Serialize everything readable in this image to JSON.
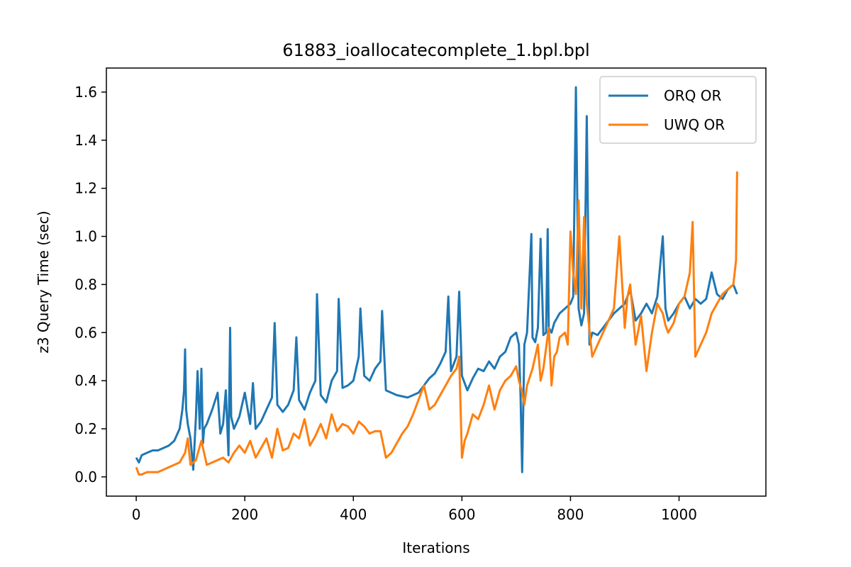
{
  "chart_data": {
    "type": "line",
    "title": "61883_ioallocatecomplete_1.bpl.bpl",
    "xlabel": "Iterations",
    "ylabel": "z3 Query Time (sec)",
    "xlim": [
      -55,
      1160
    ],
    "ylim": [
      -0.08,
      1.7
    ],
    "xticks": [
      0,
      200,
      400,
      600,
      800,
      1000
    ],
    "xtick_labels": [
      "0",
      "200",
      "400",
      "600",
      "800",
      "1000"
    ],
    "yticks": [
      0.0,
      0.2,
      0.4,
      0.6,
      0.8,
      1.0,
      1.2,
      1.4,
      1.6
    ],
    "ytick_labels": [
      "0.0",
      "0.2",
      "0.4",
      "0.6",
      "0.8",
      "1.0",
      "1.2",
      "1.4",
      "1.6"
    ],
    "grid": false,
    "legend_position": "top-right",
    "series": [
      {
        "name": "ORQ OR",
        "color": "#1f77b4",
        "x": [
          0,
          5,
          10,
          20,
          30,
          40,
          50,
          60,
          70,
          80,
          85,
          88,
          90,
          92,
          95,
          100,
          105,
          110,
          113,
          117,
          120,
          123,
          125,
          130,
          140,
          150,
          155,
          160,
          165,
          170,
          173,
          175,
          180,
          190,
          200,
          210,
          215,
          220,
          230,
          240,
          250,
          255,
          260,
          270,
          280,
          290,
          295,
          300,
          310,
          320,
          330,
          333,
          340,
          350,
          360,
          370,
          373,
          380,
          390,
          400,
          410,
          413,
          420,
          430,
          440,
          450,
          453,
          460,
          480,
          500,
          520,
          530,
          540,
          550,
          560,
          570,
          575,
          580,
          590,
          595,
          600,
          610,
          620,
          630,
          640,
          650,
          660,
          670,
          680,
          690,
          700,
          705,
          708,
          711,
          715,
          720,
          728,
          730,
          735,
          740,
          745,
          750,
          755,
          758,
          760,
          765,
          770,
          780,
          790,
          800,
          805,
          810,
          815,
          820,
          825,
          830,
          835,
          840,
          850,
          860,
          870,
          880,
          890,
          900,
          910,
          920,
          930,
          940,
          950,
          960,
          970,
          975,
          980,
          990,
          1000,
          1010,
          1020,
          1030,
          1040,
          1050,
          1060,
          1070,
          1080,
          1090,
          1100,
          1107
        ],
        "y": [
          0.08,
          0.06,
          0.09,
          0.1,
          0.11,
          0.11,
          0.12,
          0.13,
          0.15,
          0.2,
          0.28,
          0.36,
          0.53,
          0.28,
          0.22,
          0.16,
          0.03,
          0.25,
          0.44,
          0.2,
          0.45,
          0.14,
          0.2,
          0.22,
          0.28,
          0.35,
          0.18,
          0.22,
          0.36,
          0.09,
          0.62,
          0.25,
          0.2,
          0.25,
          0.35,
          0.22,
          0.39,
          0.2,
          0.23,
          0.28,
          0.33,
          0.64,
          0.3,
          0.27,
          0.3,
          0.36,
          0.58,
          0.32,
          0.28,
          0.35,
          0.4,
          0.76,
          0.34,
          0.31,
          0.4,
          0.44,
          0.74,
          0.37,
          0.38,
          0.4,
          0.5,
          0.7,
          0.42,
          0.4,
          0.45,
          0.48,
          0.69,
          0.36,
          0.34,
          0.33,
          0.35,
          0.38,
          0.41,
          0.43,
          0.47,
          0.52,
          0.75,
          0.44,
          0.5,
          0.77,
          0.42,
          0.36,
          0.41,
          0.45,
          0.44,
          0.48,
          0.45,
          0.5,
          0.52,
          0.58,
          0.6,
          0.55,
          0.34,
          0.02,
          0.55,
          0.6,
          1.01,
          0.58,
          0.56,
          0.62,
          0.99,
          0.59,
          0.6,
          1.03,
          0.62,
          0.6,
          0.64,
          0.68,
          0.7,
          0.72,
          0.75,
          1.62,
          0.7,
          0.63,
          0.68,
          1.5,
          0.55,
          0.6,
          0.59,
          0.62,
          0.65,
          0.68,
          0.7,
          0.72,
          0.78,
          0.65,
          0.68,
          0.72,
          0.68,
          0.75,
          1.0,
          0.7,
          0.65,
          0.68,
          0.72,
          0.75,
          0.7,
          0.74,
          0.72,
          0.74,
          0.85,
          0.76,
          0.74,
          0.78,
          0.8,
          0.76
        ]
      },
      {
        "name": "UWQ OR",
        "color": "#ff7f0e",
        "x": [
          0,
          5,
          10,
          20,
          30,
          40,
          50,
          60,
          70,
          80,
          90,
          95,
          100,
          110,
          115,
          120,
          130,
          140,
          150,
          160,
          170,
          180,
          190,
          200,
          210,
          220,
          230,
          240,
          250,
          260,
          270,
          280,
          290,
          300,
          310,
          320,
          330,
          340,
          350,
          360,
          370,
          380,
          390,
          400,
          410,
          420,
          430,
          440,
          450,
          460,
          470,
          480,
          490,
          500,
          510,
          520,
          530,
          540,
          550,
          560,
          570,
          580,
          590,
          595,
          600,
          605,
          610,
          620,
          630,
          640,
          650,
          660,
          670,
          680,
          690,
          700,
          705,
          710,
          715,
          720,
          730,
          740,
          745,
          750,
          760,
          765,
          770,
          775,
          780,
          790,
          795,
          800,
          805,
          810,
          815,
          820,
          825,
          830,
          840,
          850,
          860,
          870,
          880,
          890,
          900,
          905,
          910,
          920,
          930,
          940,
          950,
          960,
          970,
          975,
          980,
          990,
          1000,
          1010,
          1020,
          1025,
          1030,
          1040,
          1050,
          1060,
          1070,
          1080,
          1090,
          1100,
          1105,
          1107
        ],
        "y": [
          0.04,
          0.01,
          0.01,
          0.02,
          0.02,
          0.02,
          0.03,
          0.04,
          0.05,
          0.06,
          0.1,
          0.16,
          0.05,
          0.07,
          0.11,
          0.15,
          0.05,
          0.06,
          0.07,
          0.08,
          0.06,
          0.1,
          0.13,
          0.1,
          0.15,
          0.08,
          0.12,
          0.16,
          0.08,
          0.2,
          0.11,
          0.12,
          0.18,
          0.16,
          0.24,
          0.13,
          0.17,
          0.22,
          0.16,
          0.26,
          0.19,
          0.22,
          0.21,
          0.18,
          0.23,
          0.21,
          0.18,
          0.19,
          0.19,
          0.08,
          0.1,
          0.14,
          0.18,
          0.21,
          0.26,
          0.32,
          0.38,
          0.28,
          0.3,
          0.34,
          0.38,
          0.42,
          0.45,
          0.5,
          0.08,
          0.15,
          0.18,
          0.26,
          0.24,
          0.3,
          0.38,
          0.28,
          0.36,
          0.4,
          0.42,
          0.46,
          0.4,
          0.36,
          0.3,
          0.38,
          0.45,
          0.55,
          0.4,
          0.45,
          0.62,
          0.38,
          0.5,
          0.52,
          0.58,
          0.6,
          0.55,
          1.02,
          0.85,
          0.76,
          1.15,
          0.7,
          1.08,
          0.72,
          0.5,
          0.55,
          0.6,
          0.65,
          0.7,
          1.0,
          0.62,
          0.75,
          0.8,
          0.55,
          0.67,
          0.44,
          0.6,
          0.72,
          0.68,
          0.63,
          0.6,
          0.64,
          0.72,
          0.75,
          0.85,
          1.06,
          0.5,
          0.55,
          0.6,
          0.68,
          0.72,
          0.76,
          0.78,
          0.8,
          0.9,
          1.27
        ]
      }
    ]
  }
}
